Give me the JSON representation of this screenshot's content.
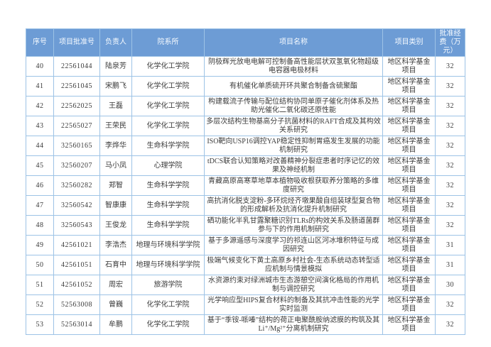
{
  "table": {
    "headers": {
      "seq": "序号",
      "grant_no": "项目批准号",
      "pi": "负责人",
      "department": "院系所",
      "title": "项目名称",
      "category": "项目类别",
      "amount": "批准经费（万元）"
    },
    "colors": {
      "header_bg": "#6d9cd5",
      "header_text": "#f7fbff",
      "border": "#9dc3e6",
      "body_text": "#3a3a3a"
    },
    "rows": [
      {
        "seq": "40",
        "grant_no": "22561044",
        "pi": "陆泉芳",
        "department": "化学化工学院",
        "title": "阴极辉光放电电解可控制备高性能层状双氢氧化物超级电容器电极材料",
        "category": "地区科学基金项目",
        "amount": "32"
      },
      {
        "seq": "41",
        "grant_no": "22561045",
        "pi": "宋鹏飞",
        "department": "化学化工学院",
        "title": "有机催化单质硫开环共聚合制备含硫聚酯",
        "category": "地区科学基金项目",
        "amount": "32"
      },
      {
        "seq": "42",
        "grant_no": "22562025",
        "pi": "王磊",
        "department": "化学化工学院",
        "title": "构建载流子传输与配位结构协同单原子催化剂体系及热助光催化二氧化碳还原性能",
        "category": "地区科学基金项目",
        "amount": "32"
      },
      {
        "seq": "43",
        "grant_no": "22565027",
        "pi": "王荣民",
        "department": "化学化工学院",
        "title": "多层次结构生物基高分子抗菌材料的RAFT合成及其构效关系研究",
        "category": "地区科学基金项目",
        "amount": "32"
      },
      {
        "seq": "44",
        "grant_no": "32560165",
        "pi": "李烨华",
        "department": "生命科学学院",
        "title": "ISO靶向USP16调控YAP稳定性抑制胃癌发生发展的功能机制研究",
        "category": "地区科学基金项目",
        "amount": "32"
      },
      {
        "seq": "45",
        "grant_no": "32560207",
        "pi": "马小凤",
        "department": "心理学院",
        "title": "tDCS联合认知策略对改善精神分裂症患者时序记忆的效果及神经机制",
        "category": "地区科学基金项目",
        "amount": "32"
      },
      {
        "seq": "46",
        "grant_no": "32560282",
        "pi": "郑智",
        "department": "生命科学学院",
        "title": "青藏高原高寒草地草本植物吸收根获取养分策略的多维度研究",
        "category": "地区科学基金项目",
        "amount": "32"
      },
      {
        "seq": "47",
        "grant_no": "32560542",
        "pi": "智康康",
        "department": "生命科学学院",
        "title": "高抗消化脱支淀粉-多环烷烃齐墩果酸自组装球型复合物的形成解析及抗消化提升机制研究",
        "category": "地区科学基金项目",
        "amount": "32"
      },
      {
        "seq": "48",
        "grant_no": "32560543",
        "pi": "王俊龙",
        "department": "生命科学学院",
        "title": "硒功能化半乳甘露聚糖识别TLRs的构效关系及肠道菌群参与下的作用机制研究",
        "category": "地区科学基金项目",
        "amount": "32"
      },
      {
        "seq": "49",
        "grant_no": "42561021",
        "pi": "李浩杰",
        "department": "地理与环境科学学院",
        "title": "基于多源遥感与深度学习的祁连山区河冰堆积特征与成因研究",
        "category": "地区科学基金项目",
        "amount": "31"
      },
      {
        "seq": "50",
        "grant_no": "42561051",
        "pi": "石育中",
        "department": "地理与环境科学学院",
        "title": "极端气候变化下黄土高原乡村社会-生态系统动态转型适应机制与情景模拟",
        "category": "地区科学基金项目",
        "amount": "31"
      },
      {
        "seq": "51",
        "grant_no": "42561052",
        "pi": "周宏",
        "department": "旅游学院",
        "title": "水资源约束对绿洲城市生态游憩空间演化格局的作用机制与调控研究",
        "category": "地区科学基金项目",
        "amount": "30"
      },
      {
        "seq": "52",
        "grant_no": "52563008",
        "pi": "曾巍",
        "department": "化学化工学院",
        "title": "光学响应型HIPS复合材料的制备及其抗冲击性能的光学实时监测",
        "category": "地区科学基金项目",
        "amount": "32"
      },
      {
        "seq": "53",
        "grant_no": "52563014",
        "pi": "牟鹏",
        "department": "化学化工学院",
        "title": "基于“季铵-哌嗪”结构的荷正电聚酰胺纳滤膜的构筑及其Li⁺/Mg²⁺分离机制研究",
        "category": "地区科学基金项目",
        "amount": "32"
      }
    ]
  }
}
